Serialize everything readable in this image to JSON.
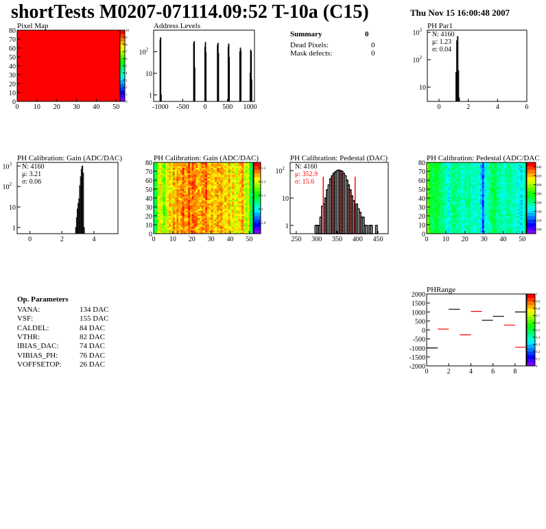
{
  "header": {
    "title": "shortTests M0207-071114.09:52 T-10a (C15)",
    "date": "Thu Nov 15 16:00:48 2007"
  },
  "summary": {
    "heading": "Summary",
    "total": "0",
    "rows": [
      {
        "label": "Dead Pixels:",
        "value": "0"
      },
      {
        "label": "Mask defects:",
        "value": "0"
      }
    ]
  },
  "op_params": {
    "heading": "Op. Parameters",
    "rows": [
      {
        "label": "VANA:",
        "value": "134 DAC"
      },
      {
        "label": "VSF:",
        "value": "155 DAC"
      },
      {
        "label": "CALDEL:",
        "value": "84 DAC"
      },
      {
        "label": "VTHR:",
        "value": "82 DAC"
      },
      {
        "label": "IBIAS_DAC:",
        "value": "74 DAC"
      },
      {
        "label": "VIBIAS_PH:",
        "value": "76 DAC"
      },
      {
        "label": "VOFFSETOP:",
        "value": "26 DAC"
      }
    ]
  },
  "chart_data": [
    {
      "id": "pixmap",
      "type": "heatmap",
      "title": "Pixel Map",
      "xlim": [
        0,
        52
      ],
      "ylim": [
        0,
        80
      ],
      "xticks": [
        "0",
        "10",
        "20",
        "30",
        "40",
        "50"
      ],
      "yticks": [
        "0",
        "10",
        "20",
        "30",
        "40",
        "50",
        "60",
        "70",
        "80"
      ],
      "zlim": [
        0,
        10
      ],
      "zticks": [
        "0",
        "1",
        "2",
        "3",
        "4",
        "5",
        "6",
        "7",
        "8",
        "9",
        "10"
      ],
      "uniform_value": 10
    },
    {
      "id": "addr",
      "type": "bar",
      "title": "Address Levels",
      "xlim": [
        -1150,
        1100
      ],
      "ylim": [
        0.5,
        1000
      ],
      "log_y": true,
      "xticks": [
        "-1000",
        "-500",
        "0",
        "500",
        "1000"
      ],
      "yticks": [
        "1",
        "10",
        "10^2"
      ],
      "bins": [
        [
          -1010,
          350
        ],
        [
          -1000,
          450
        ],
        [
          -990,
          1
        ],
        [
          -260,
          250
        ],
        [
          -250,
          300
        ],
        [
          -240,
          18
        ],
        [
          -10,
          160
        ],
        [
          0,
          270
        ],
        [
          10,
          90
        ],
        [
          270,
          200
        ],
        [
          280,
          250
        ],
        [
          290,
          85
        ],
        [
          510,
          170
        ],
        [
          520,
          230
        ],
        [
          530,
          55
        ],
        [
          500,
          0.6
        ],
        [
          770,
          100
        ],
        [
          780,
          150
        ],
        [
          790,
          110
        ],
        [
          1010,
          120
        ],
        [
          1020,
          100
        ],
        [
          1030,
          5
        ],
        [
          1000,
          10
        ]
      ]
    },
    {
      "id": "phpar1",
      "type": "bar",
      "title": "PH Par1",
      "xlim": [
        -0.8,
        6
      ],
      "ylim": [
        3,
        1200
      ],
      "log_y": true,
      "xticks": [
        "0",
        "2",
        "4",
        "6"
      ],
      "yticks": [
        "10",
        "10^2",
        "10^3"
      ],
      "stats": {
        "n": "N: 4160",
        "mean": "μ: 1.23",
        "sigma": "σ: 0.04"
      },
      "bins": [
        [
          1.1,
          3
        ],
        [
          1.15,
          35
        ],
        [
          1.2,
          500
        ],
        [
          1.25,
          700
        ],
        [
          1.3,
          40
        ],
        [
          1.35,
          4
        ]
      ]
    },
    {
      "id": "gain",
      "type": "bar",
      "title": "PH Calibration: Gain (ADC/DAC)",
      "xlim": [
        -0.8,
        5.5
      ],
      "ylim": [
        0.5,
        1500
      ],
      "log_y": true,
      "xticks": [
        "0",
        "2",
        "4"
      ],
      "yticks": [
        "1",
        "10",
        "10^2",
        "10^3"
      ],
      "stats": {
        "n": "N: 4160",
        "mean": "μ: 3.21",
        "sigma": "σ: 0.06"
      },
      "bins": [
        [
          2.85,
          1
        ],
        [
          2.9,
          3
        ],
        [
          2.95,
          8
        ],
        [
          3.0,
          15
        ],
        [
          3.05,
          25
        ],
        [
          3.1,
          110
        ],
        [
          3.15,
          300
        ],
        [
          3.2,
          700
        ],
        [
          3.25,
          1000
        ],
        [
          3.3,
          450
        ],
        [
          3.35,
          1
        ]
      ]
    },
    {
      "id": "gainmap",
      "type": "heatmap",
      "title": "PH Calibration: Gain (ADC/DAC)",
      "xlim": [
        0,
        52
      ],
      "ylim": [
        0,
        80
      ],
      "xticks": [
        "0",
        "10",
        "20",
        "30",
        "40",
        "50"
      ],
      "yticks": [
        "0",
        "10",
        "20",
        "30",
        "40",
        "50",
        "60",
        "70",
        "80"
      ],
      "zlim": [
        2.82,
        3.34
      ],
      "zticks": [
        "2.9",
        "3",
        "3.1",
        "3.2",
        "3.3"
      ],
      "column_means": [
        3.05,
        3.12,
        3.2,
        3.22,
        3.18,
        3.15,
        3.2,
        3.22,
        3.25,
        3.22,
        3.27,
        3.24,
        3.28,
        3.25,
        3.27,
        3.3,
        3.26,
        3.27,
        3.3,
        3.28,
        3.3,
        3.29,
        3.27,
        3.26,
        3.25,
        3.28,
        3.27,
        3.3,
        3.26,
        3.24,
        3.26,
        3.23,
        3.25,
        3.27,
        3.25,
        3.28,
        3.23,
        3.25,
        3.22,
        3.26,
        3.2,
        3.24,
        3.22,
        3.2,
        3.23,
        3.25,
        3.27,
        3.2,
        3.18,
        3.22,
        3.1,
        3.05
      ]
    },
    {
      "id": "ped",
      "type": "bar",
      "title": "PH Calibration: Pedestal (DAC)",
      "xlim": [
        235,
        475
      ],
      "ylim": [
        0.5,
        200
      ],
      "log_y": true,
      "xticks": [
        "250",
        "300",
        "350",
        "400",
        "450"
      ],
      "yticks": [
        "1",
        "10",
        "10^2"
      ],
      "stats": {
        "n": "N: 4160",
        "mean": "μ: 352.9",
        "sigma": "σ: 15.6"
      },
      "fit_range": [
        316,
        394
      ],
      "bins": [
        [
          296,
          1
        ],
        [
          300,
          1
        ],
        [
          304,
          1
        ],
        [
          308,
          2
        ],
        [
          312,
          5
        ],
        [
          316,
          6
        ],
        [
          320,
          10
        ],
        [
          324,
          20
        ],
        [
          328,
          30
        ],
        [
          332,
          50
        ],
        [
          336,
          65
        ],
        [
          340,
          80
        ],
        [
          344,
          90
        ],
        [
          348,
          100
        ],
        [
          352,
          105
        ],
        [
          356,
          100
        ],
        [
          360,
          95
        ],
        [
          364,
          80
        ],
        [
          368,
          65
        ],
        [
          372,
          45
        ],
        [
          376,
          30
        ],
        [
          380,
          20
        ],
        [
          384,
          12
        ],
        [
          388,
          8
        ],
        [
          392,
          5
        ],
        [
          396,
          6
        ],
        [
          400,
          4
        ],
        [
          404,
          3
        ],
        [
          408,
          2
        ],
        [
          412,
          2
        ],
        [
          416,
          1
        ],
        [
          420,
          1
        ],
        [
          428,
          1
        ],
        [
          432,
          1
        ],
        [
          444,
          1
        ]
      ]
    },
    {
      "id": "pedmap",
      "type": "heatmap",
      "title": "PH Calibration: Pedestal (ADC/DAC",
      "xlim": [
        0,
        52
      ],
      "ylim": [
        0,
        80
      ],
      "xticks": [
        "0",
        "10",
        "20",
        "30",
        "40",
        "50"
      ],
      "yticks": [
        "0",
        "10",
        "20",
        "30",
        "40",
        "50",
        "60",
        "70",
        "80"
      ],
      "zlim": [
        290,
        450
      ],
      "zticks": [
        "300",
        "320",
        "340",
        "360",
        "380",
        "400",
        "420",
        "440"
      ],
      "column_means": [
        395,
        380,
        370,
        368,
        372,
        378,
        365,
        362,
        360,
        358,
        352,
        345,
        355,
        360,
        362,
        358,
        360,
        355,
        350,
        352,
        356,
        358,
        360,
        350,
        348,
        352,
        355,
        350,
        340,
        318,
        345,
        350,
        355,
        360,
        365,
        370,
        362,
        358,
        356,
        352,
        350,
        355,
        360,
        358,
        355,
        350,
        352,
        348,
        345,
        340,
        350,
        360
      ]
    },
    {
      "id": "phrange",
      "type": "segments",
      "title": "PHRange",
      "xlim": [
        0,
        9
      ],
      "ylim": [
        -2000,
        2000
      ],
      "xticks": [
        "0",
        "2",
        "4",
        "6",
        "8"
      ],
      "yticks": [
        "-2000",
        "-1500",
        "-1000",
        "-500",
        "0",
        "500",
        "1000",
        "1500",
        "2000"
      ],
      "zticks": [
        "0",
        "0.1",
        "0.2",
        "0.3",
        "0.4",
        "0.5",
        "0.6",
        "0.7",
        "0.8",
        "0.9",
        "1"
      ],
      "segments": [
        {
          "x": 0,
          "y": -1000,
          "color": "#000000"
        },
        {
          "x": 1,
          "y": 50,
          "color": "#ff0000"
        },
        {
          "x": 2,
          "y": 1150,
          "color": "#000000"
        },
        {
          "x": 3,
          "y": -270,
          "color": "#ff0000"
        },
        {
          "x": 4,
          "y": 1030,
          "color": "#ff0000"
        },
        {
          "x": 5,
          "y": 540,
          "color": "#000000"
        },
        {
          "x": 6,
          "y": 760,
          "color": "#000000"
        },
        {
          "x": 7,
          "y": 270,
          "color": "#ff0000"
        },
        {
          "x": 8,
          "y": 1000,
          "color": "#000000"
        },
        {
          "x": 8,
          "y": -960,
          "color": "#ff0000"
        }
      ]
    }
  ]
}
